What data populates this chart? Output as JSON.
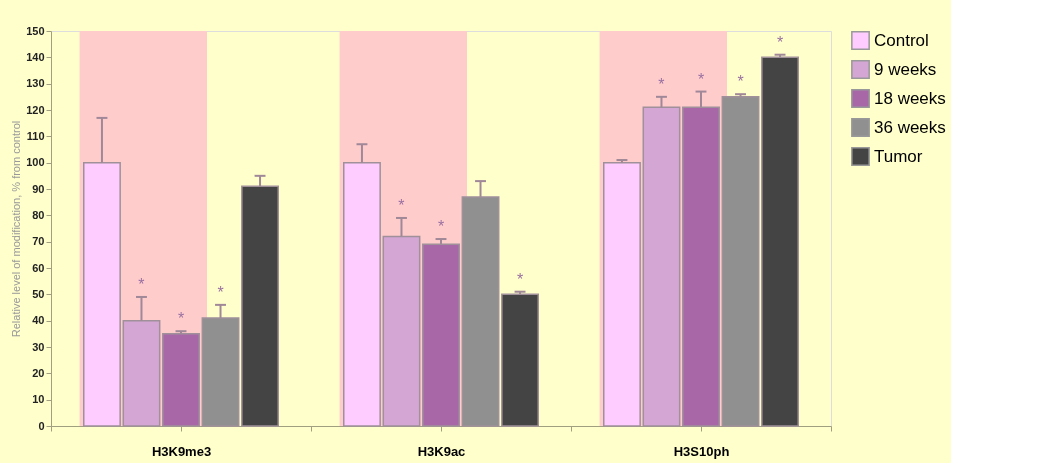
{
  "chart_data": {
    "type": "bar",
    "ylabel": "Relative level of modification, % from control",
    "categories": [
      "H3K9me3",
      "H3K9ac",
      "H3S10ph"
    ],
    "series": [
      {
        "name": "Control",
        "color": "#ffccff",
        "values": [
          100,
          100,
          100
        ],
        "errors": [
          [
            100,
            117
          ],
          [
            100,
            107
          ],
          [
            100,
            101
          ]
        ],
        "value_labels": [
          null,
          null,
          null
        ]
      },
      {
        "name": "9 weeks",
        "color": "#d4a6d4",
        "values": [
          40,
          72,
          121
        ],
        "errors": [
          [
            40,
            49
          ],
          [
            72,
            79
          ],
          [
            121,
            125
          ]
        ],
        "value_labels": [
          "*",
          "*",
          "*"
        ]
      },
      {
        "name": "18 weeks",
        "color": "#a868a8",
        "values": [
          35,
          69,
          121
        ],
        "errors": [
          [
            35,
            36
          ],
          [
            69,
            71
          ],
          [
            121,
            127
          ]
        ],
        "value_labels": [
          "*",
          "*",
          "*"
        ]
      },
      {
        "name": "36 weeks",
        "color": "#909090",
        "values": [
          41,
          87,
          125
        ],
        "errors": [
          [
            41,
            46
          ],
          [
            87,
            93
          ],
          [
            125,
            126
          ]
        ],
        "value_labels": [
          "*",
          null,
          "*"
        ]
      },
      {
        "name": "Tumor",
        "color": "#444444",
        "values": [
          91,
          50,
          140
        ],
        "errors": [
          [
            91,
            95
          ],
          [
            50,
            51
          ],
          [
            140,
            141
          ]
        ],
        "value_labels": [
          null,
          "*",
          "*"
        ]
      }
    ],
    "bands": [
      {
        "axis": "x",
        "from": "H3K9me3",
        "to": "H3K9me3",
        "color": "#ffcccc"
      },
      {
        "axis": "x",
        "from": "H3K9ac",
        "to": "H3K9ac",
        "color": "#ffcccc"
      },
      {
        "axis": "x",
        "from": "H3S10ph",
        "to": "H3S10ph",
        "color": "#ffcccc"
      }
    ],
    "ylim": [
      0,
      150
    ],
    "yticks": [
      0,
      10,
      20,
      30,
      40,
      50,
      60,
      70,
      80,
      90,
      100,
      110,
      120,
      130,
      140,
      150
    ],
    "grid": false,
    "legend": "right"
  }
}
